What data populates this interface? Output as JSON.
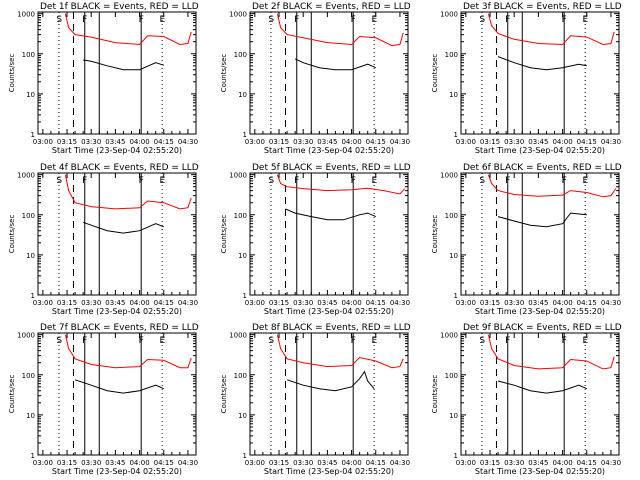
{
  "chart_data": [
    {
      "type": "line",
      "title": "Det 1f BLACK = Events, RED = LLD",
      "xlabel": "Start Time (23-Sep-04 02:55:20)",
      "ylabel": "Counts/sec",
      "ylim": [
        1,
        1000
      ],
      "log_y": true,
      "x_ticks": [
        "03:00",
        "03:15",
        "03:30",
        "03:45",
        "04:00",
        "04:15",
        "04:30"
      ],
      "y_ticks": [
        "1",
        "10",
        "100",
        "1000"
      ],
      "markers": [
        "S",
        "F",
        "F",
        "E"
      ],
      "series": [
        {
          "name": "Events",
          "color": "#000000",
          "x": [
            "03:25",
            "03:30",
            "03:40",
            "03:50",
            "04:00",
            "04:10",
            "04:15"
          ],
          "y": [
            70,
            65,
            50,
            40,
            40,
            60,
            52
          ]
        },
        {
          "name": "LLD",
          "color": "#ff0000",
          "x": [
            "03:14",
            "03:16",
            "03:20",
            "03:30",
            "03:45",
            "04:00",
            "04:05",
            "04:15",
            "04:25",
            "04:30",
            "04:32"
          ],
          "y": [
            1000,
            450,
            300,
            260,
            190,
            170,
            280,
            270,
            170,
            180,
            350
          ]
        }
      ]
    },
    {
      "type": "line",
      "title": "Det 2f BLACK = Events, RED = LLD",
      "xlabel": "Start Time (23-Sep-04 02:55:20)",
      "ylabel": "Counts/sec",
      "ylim": [
        1,
        1000
      ],
      "log_y": true,
      "x_ticks": [
        "03:00",
        "03:15",
        "03:30",
        "03:45",
        "04:00",
        "04:15",
        "04:30"
      ],
      "y_ticks": [
        "1",
        "10",
        "100",
        "1000"
      ],
      "markers": [
        "S",
        "F",
        "F",
        "E"
      ],
      "series": [
        {
          "name": "Events",
          "color": "#000000",
          "x": [
            "03:25",
            "03:30",
            "03:40",
            "03:50",
            "04:00",
            "04:10",
            "04:15"
          ],
          "y": [
            75,
            60,
            45,
            40,
            40,
            55,
            45
          ]
        },
        {
          "name": "LLD",
          "color": "#ff0000",
          "x": [
            "03:14",
            "03:16",
            "03:20",
            "03:30",
            "03:45",
            "04:00",
            "04:05",
            "04:15",
            "04:25",
            "04:30",
            "04:32"
          ],
          "y": [
            1000,
            450,
            300,
            250,
            190,
            170,
            270,
            250,
            160,
            170,
            330
          ]
        }
      ]
    },
    {
      "type": "line",
      "title": "Det 3f BLACK = Events, RED = LLD",
      "xlabel": "Start Time (23-Sep-04 02:55:20)",
      "ylabel": "Counts/sec",
      "ylim": [
        1,
        1000
      ],
      "log_y": true,
      "x_ticks": [
        "03:00",
        "03:15",
        "03:30",
        "03:45",
        "04:00",
        "04:15",
        "04:30"
      ],
      "y_ticks": [
        "1",
        "10",
        "100",
        "1000"
      ],
      "markers": [
        "S",
        "F",
        "F",
        "E"
      ],
      "series": [
        {
          "name": "Events",
          "color": "#000000",
          "x": [
            "03:20",
            "03:30",
            "03:40",
            "03:50",
            "04:00",
            "04:10",
            "04:15"
          ],
          "y": [
            85,
            60,
            45,
            40,
            45,
            55,
            50
          ]
        },
        {
          "name": "LLD",
          "color": "#ff0000",
          "x": [
            "03:14",
            "03:16",
            "03:20",
            "03:30",
            "03:45",
            "04:00",
            "04:05",
            "04:15",
            "04:25",
            "04:30",
            "04:32"
          ],
          "y": [
            1000,
            500,
            320,
            230,
            180,
            170,
            280,
            260,
            170,
            180,
            350
          ]
        }
      ]
    },
    {
      "type": "line",
      "title": "Det 4f BLACK = Events, RED = LLD",
      "xlabel": "Start Time (23-Sep-04 02:55:20)",
      "ylabel": "Counts/sec",
      "ylim": [
        1,
        1000
      ],
      "log_y": true,
      "x_ticks": [
        "03:00",
        "03:15",
        "03:30",
        "03:45",
        "04:00",
        "04:15",
        "04:30"
      ],
      "y_ticks": [
        "1",
        "10",
        "100",
        "1000"
      ],
      "markers": [
        "S",
        "F",
        "F",
        "E"
      ],
      "series": [
        {
          "name": "Events",
          "color": "#000000",
          "x": [
            "03:25",
            "03:30",
            "03:40",
            "03:50",
            "04:00",
            "04:10",
            "04:15"
          ],
          "y": [
            65,
            55,
            40,
            35,
            40,
            60,
            50
          ]
        },
        {
          "name": "LLD",
          "color": "#ff0000",
          "x": [
            "03:14",
            "03:16",
            "03:20",
            "03:30",
            "03:45",
            "04:00",
            "04:05",
            "04:15",
            "04:25",
            "04:30",
            "04:32"
          ],
          "y": [
            1000,
            400,
            200,
            160,
            140,
            150,
            220,
            200,
            140,
            150,
            260
          ]
        }
      ]
    },
    {
      "type": "line",
      "title": "Det 5f BLACK = Events, RED = LLD",
      "xlabel": "Start Time (23-Sep-04 02:55:20)",
      "ylabel": "Counts/sec",
      "ylim": [
        1,
        1000
      ],
      "log_y": true,
      "x_ticks": [
        "03:00",
        "03:15",
        "03:30",
        "03:45",
        "04:00",
        "04:15",
        "04:30"
      ],
      "y_ticks": [
        "1",
        "10",
        "100",
        "1000"
      ],
      "markers": [
        "S",
        "F",
        "F",
        "E"
      ],
      "series": [
        {
          "name": "Events",
          "color": "#000000",
          "x": [
            "03:19",
            "03:25",
            "03:35",
            "03:45",
            "03:55",
            "04:05",
            "04:10",
            "04:15"
          ],
          "y": [
            140,
            110,
            90,
            75,
            75,
            100,
            110,
            90
          ]
        },
        {
          "name": "LLD",
          "color": "#ff0000",
          "x": [
            "03:14",
            "03:16",
            "03:20",
            "03:30",
            "03:45",
            "04:00",
            "04:10",
            "04:20",
            "04:30",
            "04:33"
          ],
          "y": [
            1000,
            600,
            500,
            450,
            400,
            420,
            460,
            400,
            330,
            450
          ]
        }
      ]
    },
    {
      "type": "line",
      "title": "Det 6f BLACK = Events, RED = LLD",
      "xlabel": "Start Time (23-Sep-04 02:55:20)",
      "ylabel": "Counts/sec",
      "ylim": [
        1,
        1000
      ],
      "log_y": true,
      "x_ticks": [
        "03:00",
        "03:15",
        "03:30",
        "03:45",
        "04:00",
        "04:15",
        "04:30"
      ],
      "y_ticks": [
        "1",
        "10",
        "100",
        "1000"
      ],
      "markers": [
        "S",
        "F",
        "F",
        "E"
      ],
      "series": [
        {
          "name": "Events",
          "color": "#000000",
          "x": [
            "03:20",
            "03:30",
            "03:40",
            "03:50",
            "04:00",
            "04:05",
            "04:15"
          ],
          "y": [
            90,
            70,
            55,
            50,
            60,
            110,
            100
          ]
        },
        {
          "name": "LLD",
          "color": "#ff0000",
          "x": [
            "03:14",
            "03:16",
            "03:20",
            "03:30",
            "03:45",
            "04:00",
            "04:05",
            "04:15",
            "04:25",
            "04:30",
            "04:33"
          ],
          "y": [
            1000,
            600,
            400,
            320,
            290,
            310,
            400,
            360,
            280,
            300,
            450
          ]
        }
      ]
    },
    {
      "type": "line",
      "title": "Det 7f BLACK = Events, RED = LLD",
      "xlabel": "Start Time (23-Sep-04 02:55:20)",
      "ylabel": "Counts/sec",
      "ylim": [
        1,
        1000
      ],
      "log_y": true,
      "x_ticks": [
        "03:00",
        "03:15",
        "03:30",
        "03:45",
        "04:00",
        "04:15",
        "04:30"
      ],
      "y_ticks": [
        "1",
        "10",
        "100",
        "1000"
      ],
      "markers": [
        "S",
        "F",
        "F",
        "E"
      ],
      "series": [
        {
          "name": "Events",
          "color": "#000000",
          "x": [
            "03:20",
            "03:30",
            "03:40",
            "03:50",
            "04:00",
            "04:10",
            "04:15"
          ],
          "y": [
            75,
            55,
            40,
            35,
            40,
            55,
            45
          ]
        },
        {
          "name": "LLD",
          "color": "#ff0000",
          "x": [
            "03:14",
            "03:16",
            "03:20",
            "03:30",
            "03:45",
            "04:00",
            "04:05",
            "04:15",
            "04:25",
            "04:30",
            "04:32"
          ],
          "y": [
            1000,
            450,
            250,
            180,
            150,
            160,
            240,
            230,
            150,
            150,
            260
          ]
        }
      ]
    },
    {
      "type": "line",
      "title": "Det 8f BLACK = Events, RED = LLD",
      "xlabel": "Start Time (23-Sep-04 02:55:20)",
      "ylabel": "Counts/sec",
      "ylim": [
        1,
        1000
      ],
      "log_y": true,
      "x_ticks": [
        "03:00",
        "03:15",
        "03:30",
        "03:45",
        "04:00",
        "04:15",
        "04:30"
      ],
      "y_ticks": [
        "1",
        "10",
        "100",
        "1000"
      ],
      "markers": [
        "S",
        "F",
        "F",
        "E"
      ],
      "series": [
        {
          "name": "Events",
          "color": "#000000",
          "x": [
            "03:20",
            "03:30",
            "03:40",
            "03:50",
            "04:00",
            "04:05",
            "04:08",
            "04:10",
            "04:14"
          ],
          "y": [
            75,
            55,
            45,
            40,
            50,
            80,
            120,
            70,
            45
          ]
        },
        {
          "name": "LLD",
          "color": "#ff0000",
          "x": [
            "03:14",
            "03:16",
            "03:20",
            "03:30",
            "03:45",
            "04:00",
            "04:05",
            "04:15",
            "04:25",
            "04:30",
            "04:32"
          ],
          "y": [
            1000,
            450,
            250,
            200,
            160,
            170,
            270,
            220,
            150,
            160,
            250
          ]
        }
      ]
    },
    {
      "type": "line",
      "title": "Det 9f BLACK = Events, RED = LLD",
      "xlabel": "Start Time (23-Sep-04 02:55:20)",
      "ylabel": "Counts/sec",
      "ylim": [
        1,
        1000
      ],
      "log_y": true,
      "x_ticks": [
        "03:00",
        "03:15",
        "03:30",
        "03:45",
        "04:00",
        "04:15",
        "04:30"
      ],
      "y_ticks": [
        "1",
        "10",
        "100",
        "1000"
      ],
      "markers": [
        "S",
        "F",
        "F",
        "E"
      ],
      "series": [
        {
          "name": "Events",
          "color": "#000000",
          "x": [
            "03:20",
            "03:30",
            "03:40",
            "03:50",
            "04:00",
            "04:10",
            "04:15"
          ],
          "y": [
            70,
            55,
            40,
            35,
            40,
            55,
            45
          ]
        },
        {
          "name": "LLD",
          "color": "#ff0000",
          "x": [
            "03:14",
            "03:16",
            "03:20",
            "03:30",
            "03:45",
            "04:00",
            "04:05",
            "04:15",
            "04:25",
            "04:30",
            "04:32"
          ],
          "y": [
            1000,
            450,
            250,
            170,
            140,
            150,
            240,
            220,
            140,
            150,
            280
          ]
        }
      ]
    }
  ]
}
